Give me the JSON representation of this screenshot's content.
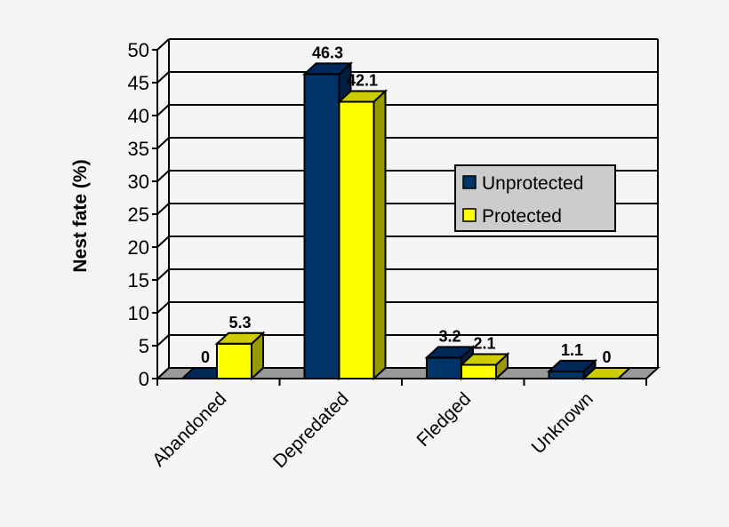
{
  "chart_data": {
    "type": "bar",
    "subtype": "3d-clustered",
    "title": "",
    "xlabel": "",
    "ylabel": "Nest fate (%)",
    "ylim": [
      0,
      50
    ],
    "yticks": [
      0,
      5,
      10,
      15,
      20,
      25,
      30,
      35,
      40,
      45,
      50
    ],
    "grid": true,
    "legend_position": "right-center-inside",
    "categories": [
      "Abandoned",
      "Depredated",
      "Fledged",
      "Unknown"
    ],
    "series": [
      {
        "name": "Unprotected",
        "values": [
          0,
          46.3,
          3.2,
          1.1
        ],
        "color": "#003366"
      },
      {
        "name": "Protected",
        "values": [
          5.3,
          42.1,
          2.1,
          0
        ],
        "color": "#ffff00"
      }
    ],
    "data_labels": [
      [
        "0",
        "46.3",
        "3.2",
        "1.1"
      ],
      [
        "5.3",
        "42.1",
        "2.1",
        "0"
      ]
    ]
  },
  "legend": {
    "items": [
      {
        "label": "Unprotected",
        "color": "#003366"
      },
      {
        "label": "Protected",
        "color": "#ffff00"
      }
    ]
  },
  "colors": {
    "background": "#f5f5f5",
    "floor": "#999999",
    "unprotected_front": "#003366",
    "unprotected_top": "#00295a",
    "unprotected_side": "#001f40",
    "protected_front": "#ffff00",
    "protected_top": "#cccc00",
    "protected_side": "#999900",
    "legend_bg": "#cccccc"
  }
}
